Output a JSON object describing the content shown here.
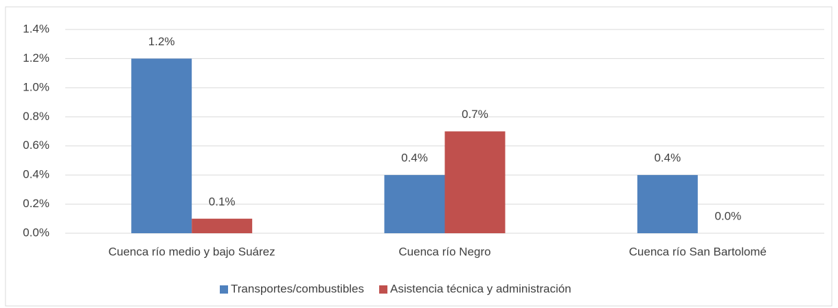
{
  "chart_data": {
    "type": "bar",
    "categories": [
      "Cuenca río medio y bajo Suárez",
      "Cuenca río Negro",
      "Cuenca río San Bartolomé"
    ],
    "series": [
      {
        "name": "Transportes/combustibles",
        "color": "#4f81bd",
        "values": [
          1.2,
          0.4,
          0.4
        ],
        "value_labels": [
          "1.2%",
          "0.4%",
          "0.4%"
        ]
      },
      {
        "name": "Asistencia técnica y administración",
        "color": "#c0504d",
        "values": [
          0.1,
          0.7,
          0.0
        ],
        "value_labels": [
          "0.1%",
          "0.7%",
          "0.0%"
        ]
      }
    ],
    "ylim": [
      0,
      1.4
    ],
    "yticks": [
      {
        "value": 0,
        "label": "0.0%"
      },
      {
        "value": 0.2,
        "label": "0.2%"
      },
      {
        "value": 0.4,
        "label": "0.4%"
      },
      {
        "value": 0.6,
        "label": "0.6%"
      },
      {
        "value": 0.8,
        "label": "0.8%"
      },
      {
        "value": 1.0,
        "label": "1.0%"
      },
      {
        "value": 1.2,
        "label": "1.2%"
      },
      {
        "value": 1.4,
        "label": "1.4%"
      }
    ],
    "grid": true,
    "legend": "bottom"
  }
}
